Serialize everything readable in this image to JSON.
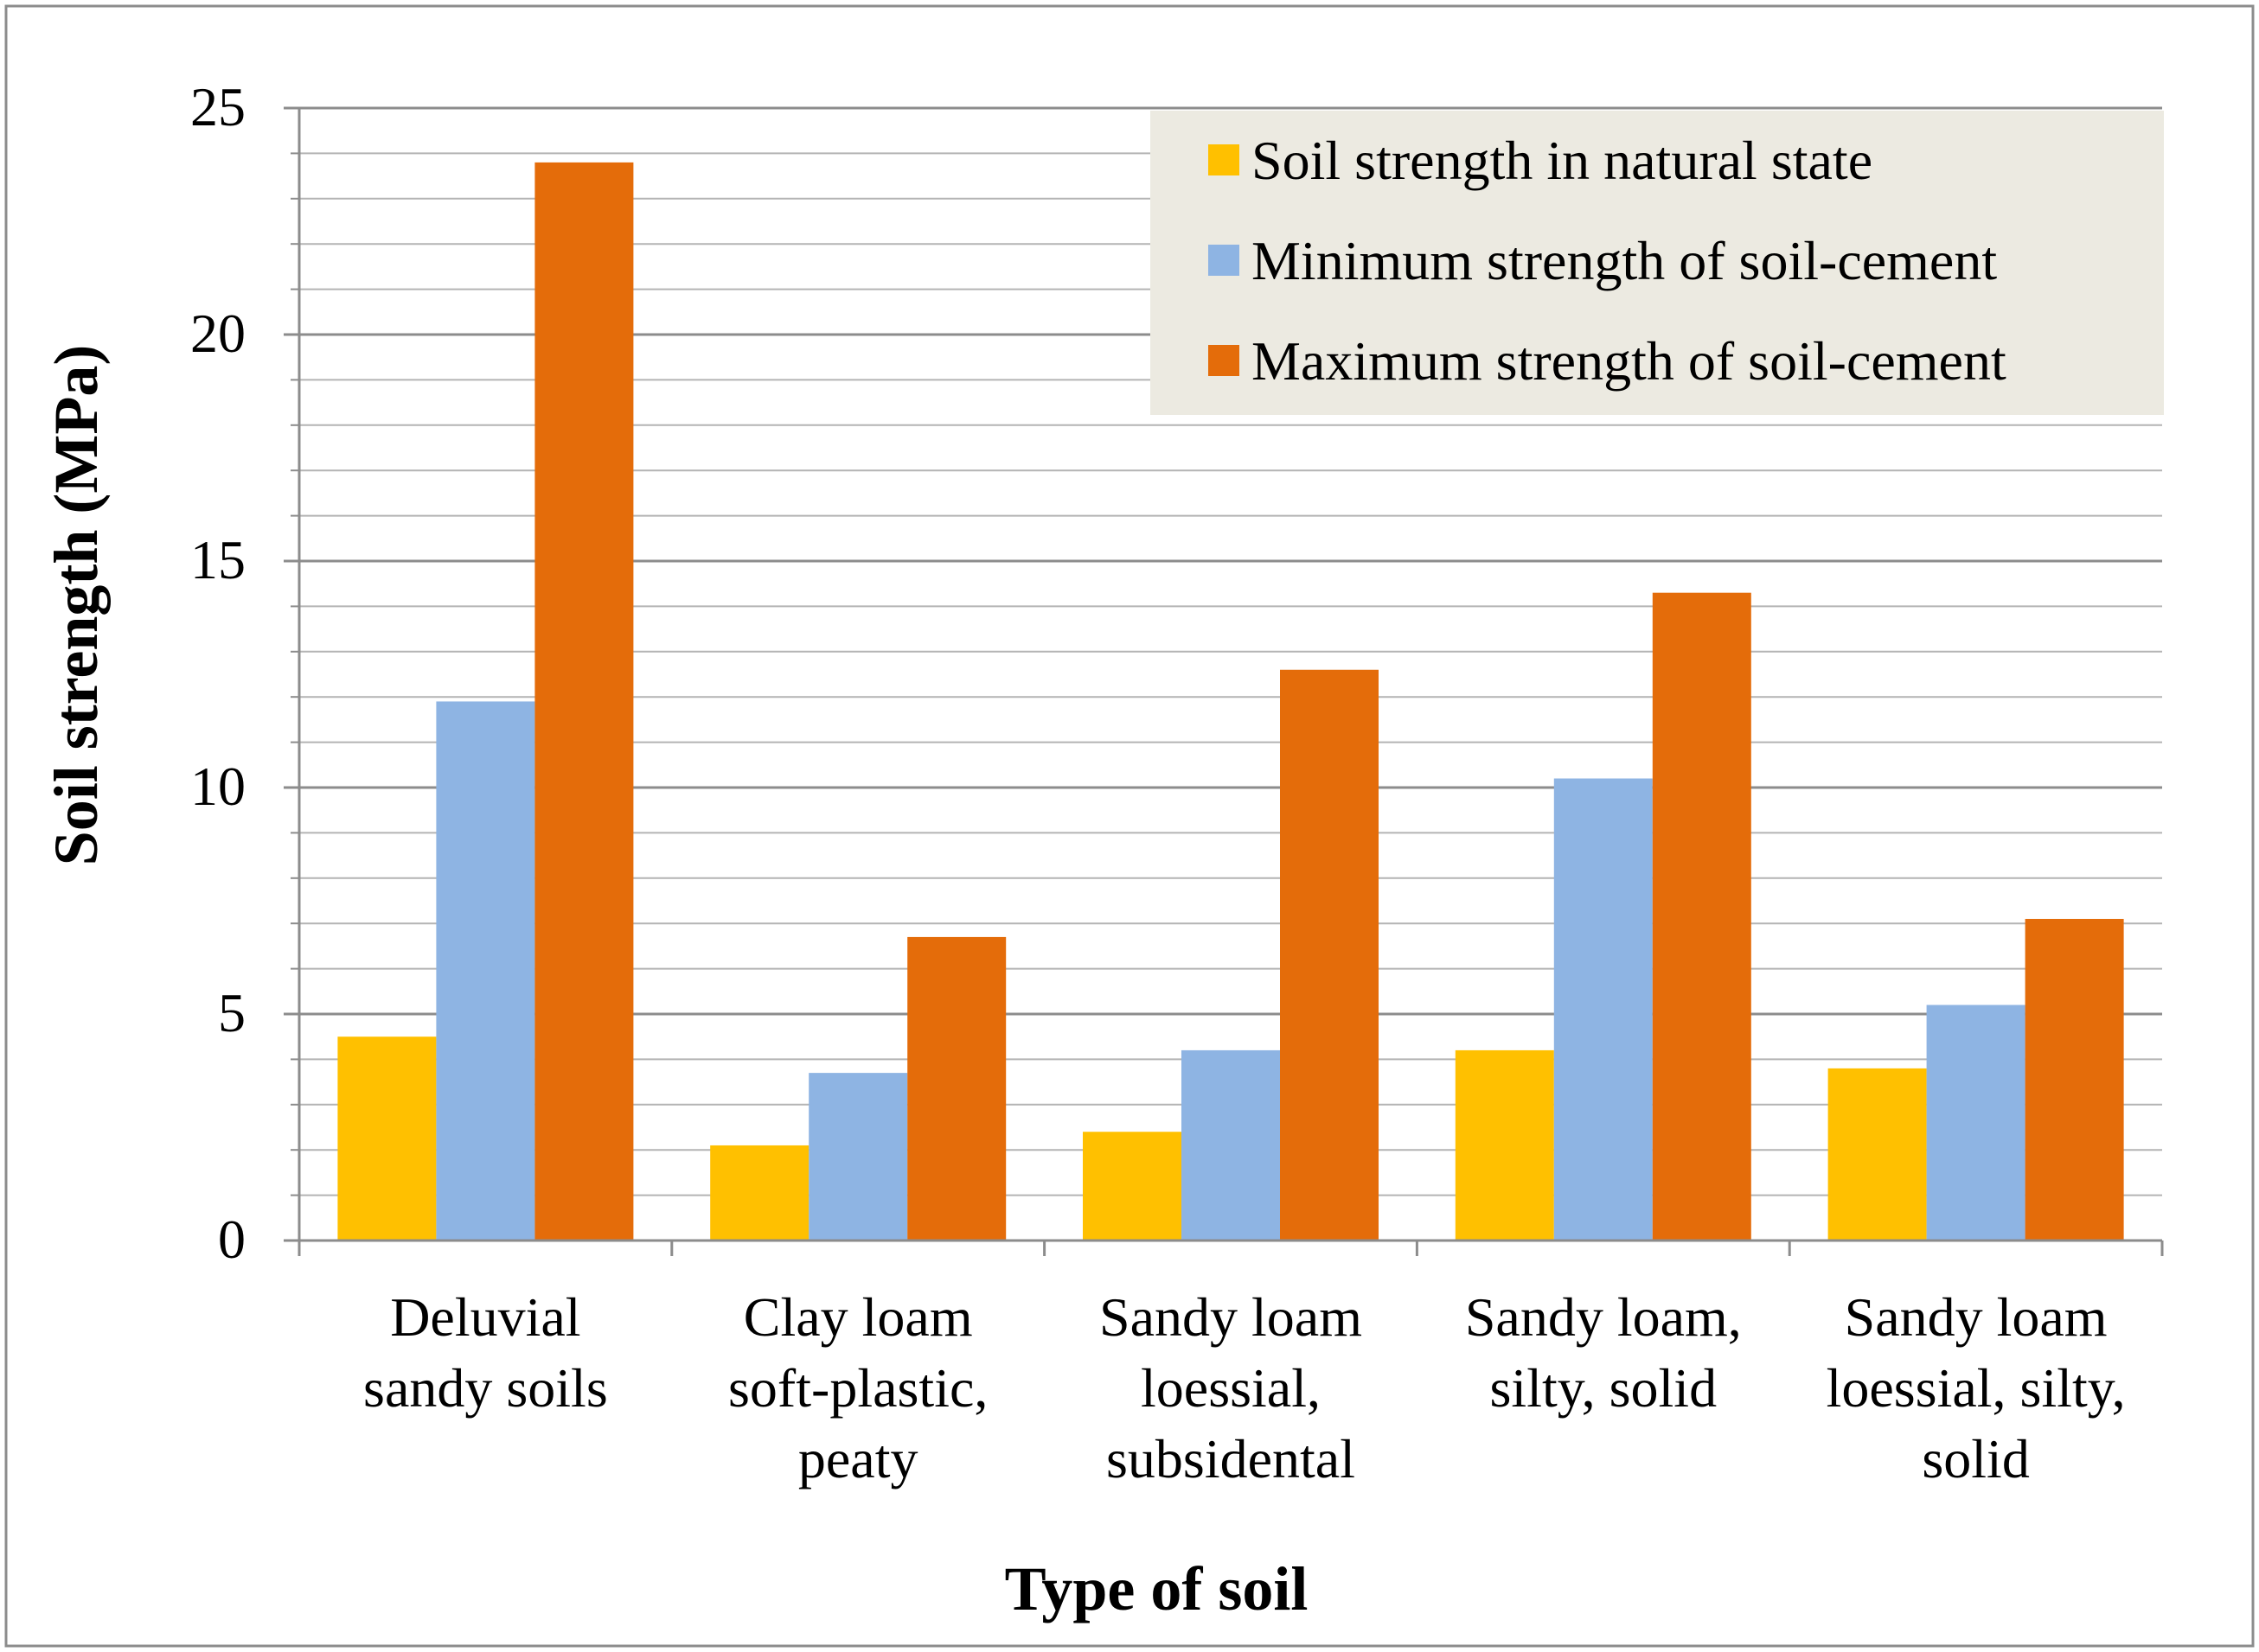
{
  "chart_data": {
    "type": "bar",
    "title": "",
    "xlabel": "Type of soil",
    "ylabel": "Soil strength (MPa)",
    "ylim": [
      0,
      25
    ],
    "y_major_ticks": [
      0,
      5,
      10,
      15,
      20,
      25
    ],
    "y_minor_step": 1,
    "grid": true,
    "legend_position": "top-right",
    "categories": [
      [
        "Deluvial",
        "sandy soils"
      ],
      [
        "Clay loam",
        "soft-plastic,",
        "peaty"
      ],
      [
        "Sandy loam",
        "loessial,",
        "subsidental"
      ],
      [
        "Sandy loam,",
        "silty, solid"
      ],
      [
        "Sandy loam",
        "loessial, silty,",
        "solid"
      ]
    ],
    "series": [
      {
        "name": "Soil strength in natural state",
        "color": "#FFC000",
        "values": [
          4.5,
          2.1,
          2.4,
          4.2,
          3.8
        ]
      },
      {
        "name": "Minimum strength of soil-cement",
        "color": "#8EB4E3",
        "values": [
          11.9,
          3.7,
          4.2,
          10.2,
          5.2
        ]
      },
      {
        "name": "Maximum strength of soil-cement",
        "color": "#E46C0A",
        "values": [
          23.8,
          6.7,
          12.6,
          14.3,
          7.1
        ]
      }
    ]
  }
}
